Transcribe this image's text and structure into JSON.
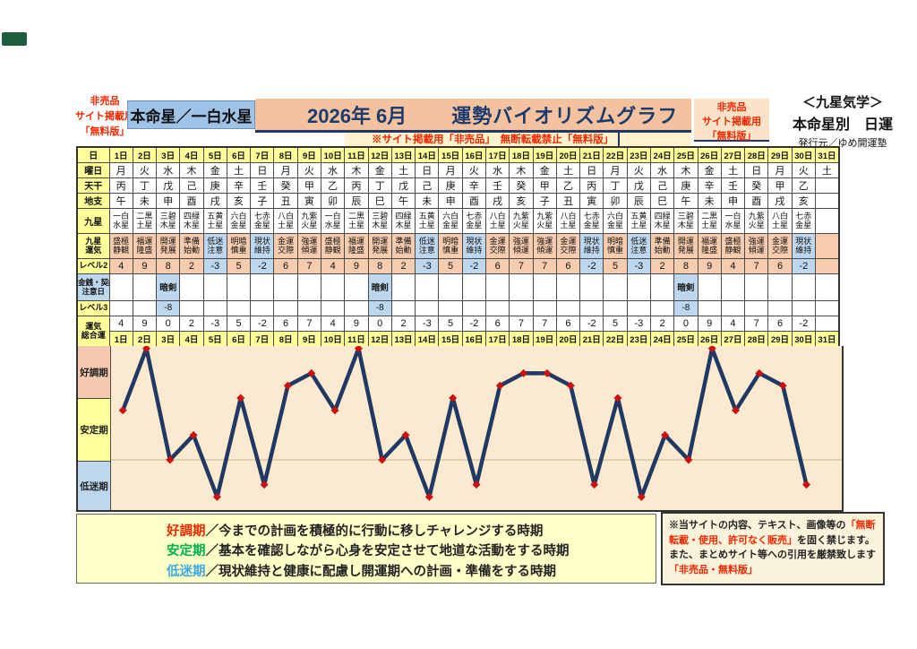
{
  "colors": {
    "accent_navy": "#1F3864",
    "title_bar_bg": "#F4C29F",
    "honmei_box_bg": "#9DC3E6",
    "yellow_cell": "#FFFF99",
    "pink_cell": "#F7CBAE",
    "blue_cell": "#BDD7EE",
    "graph_bg": "#FBEAD0",
    "line_color": "#1F3864",
    "marker_color": "#CC1111",
    "red_text": "#F02800",
    "legend_bg": "#FFFFC8"
  },
  "header": {
    "left_note": [
      "非売品",
      "サイト掲載用",
      "「無料版」"
    ],
    "honmeisei": "本命星／一白水星",
    "year_month": "2026年 6月",
    "title": "運勢バイオリズムグラフ",
    "subtitle_note": "※サイト掲載用「非売品」　無断転載禁止「無料版」",
    "right_note": [
      "非売品",
      "サイト掲載用",
      "「無料版」"
    ],
    "school": "＜九星気学＞",
    "school_sub": "本命星別　日運",
    "publisher": "発行元／ゆめ開運塾"
  },
  "table": {
    "labels": {
      "date": "日",
      "weekday": "曜日",
      "stem": "天干",
      "branch": "地支",
      "star": "九星",
      "fortune1": "九星",
      "fortune2": "運気",
      "level2": "レベル2",
      "caution1": "金銭・契約",
      "caution2": "注意日",
      "level3": "レベル3",
      "total1": "運気",
      "total2": "総合運"
    },
    "days": [
      "1日",
      "2日",
      "3日",
      "4日",
      "5日",
      "6日",
      "7日",
      "8日",
      "9日",
      "10日",
      "11日",
      "12日",
      "13日",
      "14日",
      "15日",
      "16日",
      "17日",
      "18日",
      "19日",
      "20日",
      "21日",
      "22日",
      "23日",
      "24日",
      "25日",
      "26日",
      "27日",
      "28日",
      "29日",
      "30日",
      "31日"
    ],
    "weekdays": [
      "月",
      "火",
      "水",
      "木",
      "金",
      "土",
      "日",
      "月",
      "火",
      "水",
      "木",
      "金",
      "土",
      "日",
      "月",
      "火",
      "水",
      "木",
      "金",
      "土",
      "日",
      "月",
      "火",
      "水",
      "木",
      "金",
      "土",
      "日",
      "月",
      "火",
      "土"
    ],
    "stems": [
      "丙",
      "丁",
      "戊",
      "己",
      "庚",
      "辛",
      "壬",
      "癸",
      "甲",
      "乙",
      "丙",
      "丁",
      "戊",
      "己",
      "庚",
      "辛",
      "壬",
      "癸",
      "甲",
      "乙",
      "丙",
      "丁",
      "戊",
      "己",
      "庚",
      "辛",
      "壬",
      "癸",
      "甲",
      "乙",
      ""
    ],
    "branches": [
      "午",
      "未",
      "申",
      "酉",
      "戌",
      "亥",
      "子",
      "丑",
      "寅",
      "卯",
      "辰",
      "巳",
      "午",
      "未",
      "申",
      "酉",
      "戌",
      "亥",
      "子",
      "丑",
      "寅",
      "卯",
      "辰",
      "巳",
      "午",
      "未",
      "申",
      "酉",
      "戌",
      "亥",
      ""
    ],
    "stars": [
      "一白水星",
      "二黒土星",
      "三碧木星",
      "四緑木星",
      "五黄土星",
      "六白金星",
      "七赤金星",
      "八白土星",
      "九紫火星",
      "一白水星",
      "二黒土星",
      "三碧木星",
      "四緑木星",
      "五黄土星",
      "六白金星",
      "七赤金星",
      "八白土星",
      "九紫火星",
      "九紫火星",
      "八白土星",
      "七赤金星",
      "六白金星",
      "五黄土星",
      "四緑木星",
      "三碧木星",
      "二黒土星",
      "一白水星",
      "九紫火星",
      "八白土星",
      "七赤金星",
      ""
    ],
    "fortunes": [
      "盛極静観",
      "福運隆盛",
      "開運発展",
      "準備始動",
      "低迷注意",
      "明暗慎重",
      "現状維持",
      "金運交際",
      "強運傾運",
      "盛極静観",
      "福運隆盛",
      "開運発展",
      "準備始動",
      "低迷注意",
      "明暗慎重",
      "現状維持",
      "金運交際",
      "強運傾運",
      "強運傾運",
      "金運交際",
      "現状維持",
      "明暗慎重",
      "低迷注意",
      "準備始動",
      "開運発展",
      "福運隆盛",
      "盛極静観",
      "強運傾運",
      "金運交際",
      "現状維持",
      ""
    ],
    "level2": [
      4,
      9,
      8,
      2,
      -3,
      5,
      -2,
      6,
      7,
      4,
      9,
      8,
      2,
      -3,
      5,
      -2,
      6,
      7,
      7,
      6,
      -2,
      5,
      -3,
      2,
      8,
      9,
      4,
      7,
      6,
      -2,
      null
    ],
    "caution": [
      "",
      "",
      "暗剣",
      "",
      "",
      "",
      "",
      "",
      "",
      "",
      "",
      "暗剣",
      "",
      "",
      "",
      "",
      "",
      "",
      "",
      "",
      "",
      "",
      "",
      "",
      "暗剣",
      "",
      "",
      "",
      "",
      "",
      ""
    ],
    "level3": [
      "",
      "",
      "-8",
      "",
      "",
      "",
      "",
      "",
      "",
      "",
      "",
      "-8",
      "",
      "",
      "",
      "",
      "",
      "",
      "",
      "",
      "",
      "",
      "",
      "",
      "-8",
      "",
      "",
      "",
      "",
      "",
      ""
    ],
    "total": [
      4,
      9,
      0,
      2,
      -3,
      5,
      -2,
      6,
      7,
      4,
      9,
      0,
      2,
      -3,
      5,
      -2,
      6,
      7,
      7,
      6,
      -2,
      5,
      -3,
      2,
      0,
      9,
      4,
      7,
      6,
      -2,
      null
    ]
  },
  "graph": {
    "bands": [
      {
        "label": "好調期",
        "color": "#F5C9AE"
      },
      {
        "label": "安定期",
        "color": "#FFFF99"
      },
      {
        "label": "低迷期",
        "color": "#BDD7EE"
      }
    ]
  },
  "chart_data": {
    "type": "line",
    "title": "運勢バイオリズムグラフ 2026年6月 本命星／一白水星",
    "x": [
      1,
      2,
      3,
      4,
      5,
      6,
      7,
      8,
      9,
      10,
      11,
      12,
      13,
      14,
      15,
      16,
      17,
      18,
      19,
      20,
      21,
      22,
      23,
      24,
      25,
      26,
      27,
      28,
      29,
      30
    ],
    "values": [
      4,
      9,
      0,
      2,
      -3,
      5,
      -2,
      6,
      7,
      4,
      9,
      0,
      2,
      -3,
      5,
      -2,
      6,
      7,
      7,
      6,
      -2,
      5,
      -3,
      2,
      0,
      9,
      4,
      7,
      6,
      -2
    ],
    "xlabel": "日",
    "ylabel": "運気総合運",
    "ylim": [
      -4,
      9.5
    ],
    "zero_line": true,
    "grid": "zero-line-only",
    "legend_position": "none",
    "bands": [
      {
        "label": "好調期",
        "range": [
          5,
          9.5
        ]
      },
      {
        "label": "安定期",
        "range": [
          0,
          5
        ]
      },
      {
        "label": "低迷期",
        "range": [
          -4,
          0
        ]
      }
    ],
    "line_color": "#1F3864",
    "marker_color": "#CC1111",
    "marker_shape": "diamond"
  },
  "legend": {
    "items": [
      {
        "term": "好調期",
        "color": "#F02800",
        "text": "／今までの計画を積極的に行動に移しチャレンジする時期"
      },
      {
        "term": "安定期",
        "color": "#00B050",
        "text": "／基本を確認しながら心身を安定させて地道な活動をする時期"
      },
      {
        "term": "低迷期",
        "color": "#3FA9E0",
        "text": "／現状維持と健康に配慮し開運期への計画・準備をする時期"
      }
    ]
  },
  "notice": {
    "segments": [
      {
        "text": "※当サイトの内容、テキスト、画像等の",
        "red": false
      },
      {
        "text": "「無断転載・使用、許可なく販売」",
        "red": true
      },
      {
        "text": "を固く禁じます。また、まとめサイト等への引用を厳禁致します ",
        "red": false
      },
      {
        "text": "「非売品・無料版」",
        "red": true
      }
    ]
  }
}
